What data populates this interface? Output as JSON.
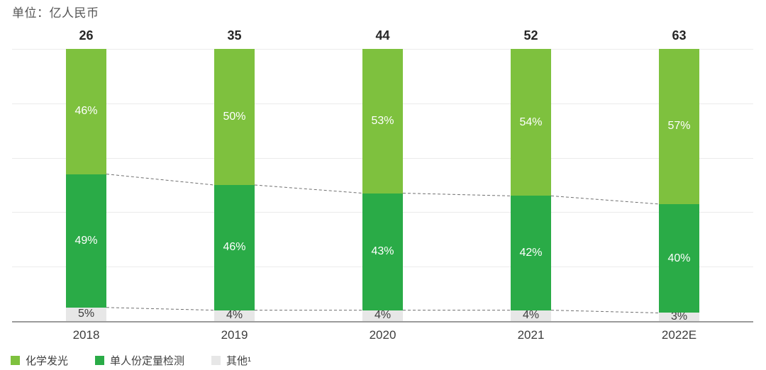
{
  "chart": {
    "unit_label": "单位：亿人民币"
  },
  "chart_data": {
    "type": "bar",
    "subtype": "100%-stacked-column",
    "title": "",
    "unit_label": "单位：亿人民币",
    "categories": [
      "2018",
      "2019",
      "2020",
      "2021",
      "2022E"
    ],
    "totals": [
      26,
      35,
      44,
      52,
      63
    ],
    "series": [
      {
        "name": "化学发光",
        "values": [
          46,
          50,
          53,
          54,
          57
        ],
        "value_suffix": "%",
        "color": "#7EC13E",
        "label_color": "#FFFFFF",
        "stack_position": "top"
      },
      {
        "name": "单人份定量检测",
        "values": [
          49,
          46,
          43,
          42,
          40
        ],
        "value_suffix": "%",
        "color": "#2AAB47",
        "label_color": "#FFFFFF",
        "stack_position": "middle"
      },
      {
        "name": "其他¹",
        "values": [
          5,
          4,
          4,
          4,
          3
        ],
        "value_suffix": "%",
        "color": "#E7E7E7",
        "label_color": "#3D3D3D",
        "stack_position": "bottom"
      }
    ],
    "ylim": [
      0,
      100
    ],
    "grid": "horizontal lines at 20% intervals",
    "legend_position": "bottom-left",
    "connectors": "dashed gray lines linking segment boundaries of adjacent bars"
  },
  "styles": {
    "light_green": "#7EC13E",
    "dark_green": "#2AAB47",
    "light_gray": "#E7E7E7",
    "gridline": "#EBEBEB",
    "axis": "#9B9B9B",
    "connector": "#707070",
    "total_label": "#262626",
    "axis_label": "#3D3D3D",
    "unit_label": "#555555",
    "legend_text": "#3F3F3F"
  }
}
